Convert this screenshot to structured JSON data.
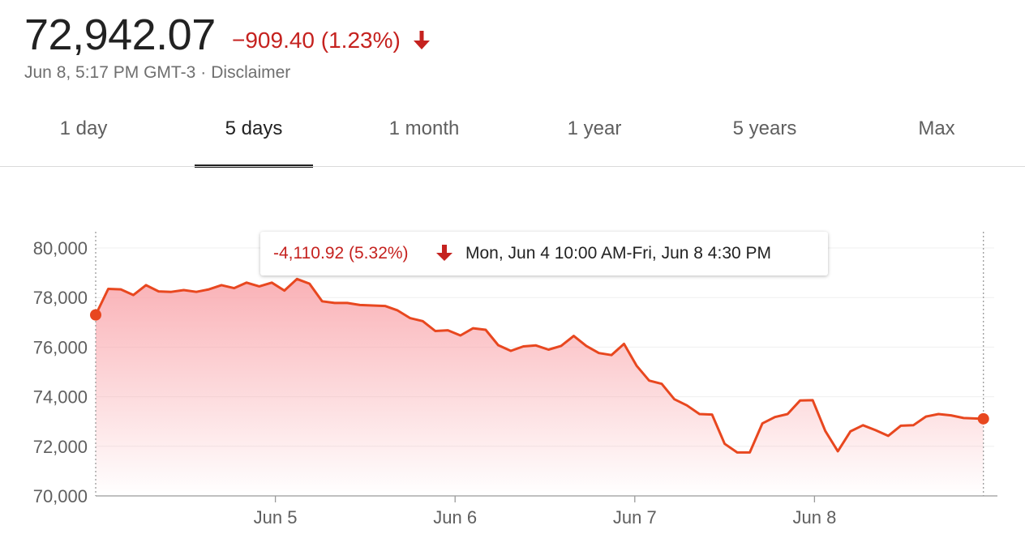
{
  "header": {
    "price": "72,942.07",
    "change": "−909.40 (1.23%)",
    "timestamp": "Jun 8, 5:17 PM GMT-3",
    "separator": "·",
    "disclaimer": "Disclaimer"
  },
  "colors": {
    "negative": "#c5221f",
    "line": "#e8471f",
    "fill_top": "#f9a4aa",
    "text_primary": "#222222",
    "text_secondary": "#5f5f5f"
  },
  "icons": {
    "change_arrow": "arrow-down-icon",
    "tooltip_arrow": "arrow-down-icon"
  },
  "tabs": [
    {
      "label": "1 day"
    },
    {
      "label": "5 days",
      "active": true
    },
    {
      "label": "1 month"
    },
    {
      "label": "1 year"
    },
    {
      "label": "5 years"
    },
    {
      "label": "Max"
    }
  ],
  "tooltip": {
    "change": "-4,110.92 (5.32%)",
    "range": "Mon, Jun 4 10:00 AM-Fri, Jun 8 4:30 PM"
  },
  "chart_data": {
    "type": "area",
    "title": "",
    "xlabel": "",
    "ylabel": "",
    "ylim": [
      70000,
      80000
    ],
    "yticks": [
      80000,
      78000,
      76000,
      74000,
      72000,
      70000
    ],
    "ytick_labels": [
      "80,000",
      "78,000",
      "76,000",
      "74,000",
      "72,000",
      "70,000"
    ],
    "xlim": [
      0,
      5
    ],
    "xticks": [
      1,
      2,
      3,
      4
    ],
    "xtick_labels": [
      "Jun 5",
      "Jun 6",
      "Jun 7",
      "Jun 8"
    ],
    "grid": "horizontal",
    "series": [
      {
        "x": [
          0.0,
          0.07,
          0.14,
          0.21,
          0.28,
          0.35,
          0.42,
          0.49,
          0.56,
          0.63,
          0.7,
          0.77,
          0.84,
          0.91,
          0.98,
          1.05,
          1.12,
          1.19,
          1.26,
          1.33,
          1.4,
          1.47,
          1.54,
          1.61,
          1.68,
          1.75,
          1.82,
          1.89,
          1.96,
          2.03,
          2.1,
          2.17,
          2.24,
          2.31,
          2.38,
          2.45,
          2.52,
          2.59,
          2.66,
          2.73,
          2.8,
          2.87,
          2.94,
          3.01,
          3.08,
          3.15,
          3.22,
          3.29,
          3.36,
          3.43,
          3.5,
          3.57,
          3.64,
          3.71,
          3.78,
          3.85,
          3.92,
          3.99,
          4.06,
          4.13,
          4.2,
          4.27,
          4.34,
          4.41,
          4.48,
          4.55,
          4.62,
          4.69,
          4.76,
          4.83,
          4.9,
          4.94
        ],
        "y": [
          77300,
          78350,
          78330,
          78100,
          78500,
          78250,
          78230,
          78300,
          78230,
          78330,
          78500,
          78380,
          78600,
          78450,
          78600,
          78280,
          78750,
          78560,
          77850,
          77780,
          77780,
          77700,
          77680,
          77660,
          77480,
          77170,
          77050,
          76650,
          76680,
          76470,
          76760,
          76700,
          76080,
          75850,
          76030,
          76070,
          75900,
          76050,
          76450,
          76050,
          75760,
          75680,
          76130,
          75250,
          74650,
          74520,
          73900,
          73650,
          73300,
          73280,
          72100,
          71750,
          71750,
          72920,
          73180,
          73300,
          73850,
          73860,
          72620,
          71800,
          72600,
          72850,
          72650,
          72420,
          72830,
          72850,
          73200,
          73300,
          73250,
          73140,
          73120,
          73110
        ]
      }
    ],
    "markers": [
      "start",
      "end"
    ],
    "reference_lines": [
      "start",
      "end"
    ]
  }
}
